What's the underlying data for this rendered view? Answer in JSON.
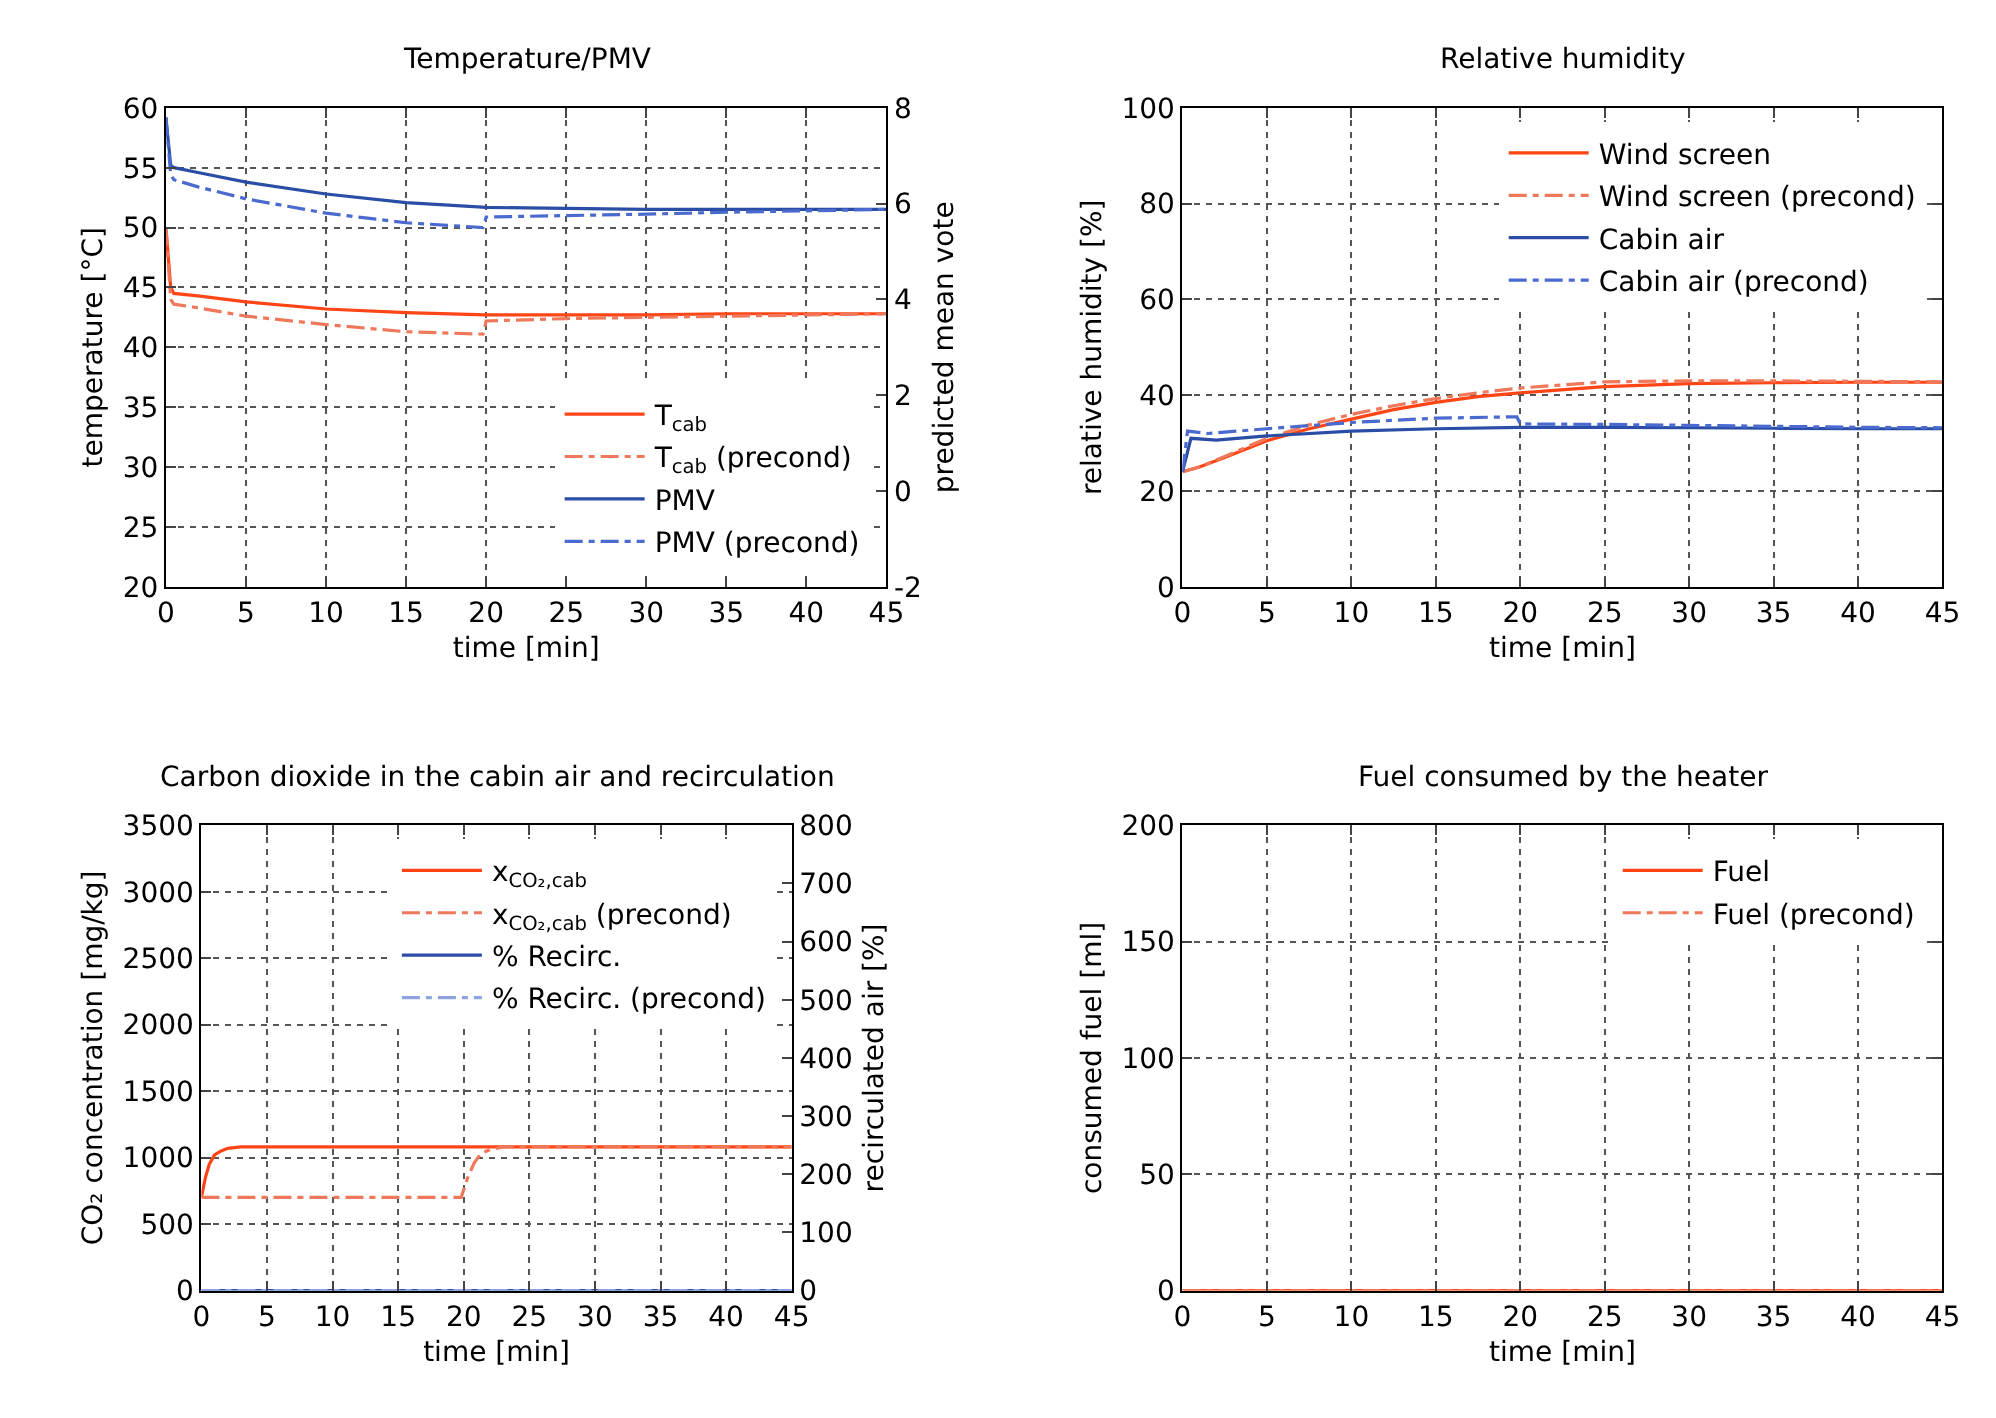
{
  "chart_data": [
    {
      "type": "line",
      "title": "Temperature/PMV",
      "xlabel": "time [min]",
      "ylabel": "temperature [°C]",
      "y2label": "predicted mean vote",
      "xlim": [
        0,
        45
      ],
      "xticks": [
        0,
        5,
        10,
        15,
        20,
        25,
        30,
        35,
        40,
        45
      ],
      "ylim": [
        20,
        60
      ],
      "yticks": [
        20,
        25,
        30,
        35,
        40,
        45,
        50,
        55,
        60
      ],
      "y2lim": [
        -2,
        8
      ],
      "y2ticks": [
        -2,
        0,
        2,
        4,
        6,
        8
      ],
      "grid": true,
      "legend": "bottom right",
      "series": [
        {
          "name": "T$_{cab}$",
          "color": "#ff4515",
          "line_style": "solid",
          "x": [
            0,
            0.3,
            0.5,
            2,
            5,
            10,
            15,
            20,
            25,
            30,
            35,
            40,
            45
          ],
          "values": [
            50,
            45,
            44.5,
            44.3,
            43.8,
            43.2,
            42.9,
            42.7,
            42.7,
            42.7,
            42.8,
            42.8,
            42.8
          ]
        },
        {
          "name": "T$_{cab}$ (precond)",
          "color": "#f0785a",
          "line_style": "dashed",
          "x": [
            0,
            0.3,
            0.5,
            2,
            5,
            10,
            15,
            19.8,
            20,
            25,
            30,
            35,
            40,
            45
          ],
          "values": [
            50,
            44,
            43.6,
            43.3,
            42.6,
            41.9,
            41.3,
            41.1,
            42.2,
            42.4,
            42.5,
            42.6,
            42.7,
            42.8
          ]
        },
        {
          "name": "PMV",
          "color": "#2a4ea6",
          "line_style": "solid",
          "axis": "y2",
          "x": [
            0,
            0.3,
            0.5,
            2,
            5,
            10,
            15,
            20,
            25,
            30,
            35,
            40,
            45
          ],
          "values": [
            7.8,
            6.8,
            6.75,
            6.65,
            6.45,
            6.2,
            6.02,
            5.92,
            5.9,
            5.88,
            5.88,
            5.88,
            5.88
          ]
        },
        {
          "name": "PMV (precond)",
          "color": "#4a6ad0",
          "line_style": "dashed",
          "axis": "y2",
          "x": [
            0,
            0.3,
            0.5,
            2,
            5,
            10,
            15,
            19.8,
            20,
            25,
            30,
            35,
            40,
            45
          ],
          "values": [
            7.8,
            6.6,
            6.5,
            6.35,
            6.1,
            5.8,
            5.6,
            5.5,
            5.72,
            5.75,
            5.78,
            5.82,
            5.85,
            5.88
          ]
        }
      ]
    },
    {
      "type": "line",
      "title": "Relative humidity",
      "xlabel": "time [min]",
      "ylabel": "relative humidity [%]",
      "xlim": [
        0,
        45
      ],
      "xticks": [
        0,
        5,
        10,
        15,
        20,
        25,
        30,
        35,
        40,
        45
      ],
      "ylim": [
        0,
        100
      ],
      "yticks": [
        0,
        20,
        40,
        60,
        80,
        100
      ],
      "grid": true,
      "legend": "top right",
      "series": [
        {
          "name": "Wind screen",
          "color": "#ff4515",
          "line_style": "solid",
          "x": [
            0,
            1,
            2.5,
            5,
            7.5,
            10,
            12.5,
            15,
            17.5,
            20,
            25,
            30,
            35,
            40,
            45
          ],
          "values": [
            24,
            25,
            27,
            30.5,
            33,
            35,
            37,
            38.5,
            39.7,
            40.5,
            41.8,
            42.4,
            42.6,
            42.7,
            42.7
          ]
        },
        {
          "name": "Wind screen (precond)",
          "color": "#f0785a",
          "line_style": "dashed",
          "x": [
            0,
            1,
            2.5,
            5,
            7.5,
            10,
            12.5,
            15,
            17.5,
            20,
            25,
            30,
            35,
            40,
            45
          ],
          "values": [
            24,
            25,
            27.2,
            31,
            33.8,
            36,
            37.8,
            39.3,
            40.5,
            41.5,
            42.8,
            43,
            43,
            42.9,
            42.8
          ]
        },
        {
          "name": "Cabin air",
          "color": "#2a4ea6",
          "line_style": "solid",
          "x": [
            0,
            0.5,
            2,
            5,
            10,
            15,
            20,
            25,
            30,
            35,
            40,
            45
          ],
          "values": [
            24,
            31,
            30.6,
            31.5,
            32.5,
            33,
            33.3,
            33.3,
            33.2,
            33.1,
            33,
            33
          ]
        },
        {
          "name": "Cabin air (precond)",
          "color": "#4a6ad0",
          "line_style": "dashed",
          "x": [
            0,
            0.3,
            1.5,
            5,
            10,
            15,
            19.8,
            20,
            25,
            30,
            35,
            40,
            45
          ],
          "values": [
            24,
            32.5,
            32,
            33,
            34.3,
            35.2,
            35.5,
            34,
            33.9,
            33.7,
            33.5,
            33.3,
            33.2
          ]
        }
      ]
    },
    {
      "type": "line",
      "title": "Carbon dioxide in the cabin air and recirculation",
      "xlabel": "time [min]",
      "ylabel": "CO₂ concentration [mg/kg]",
      "y2label": "recirculated air [%]",
      "xlim": [
        0,
        45
      ],
      "xticks": [
        0,
        5,
        10,
        15,
        20,
        25,
        30,
        35,
        40,
        45
      ],
      "ylim": [
        0,
        3500
      ],
      "yticks": [
        0,
        500,
        1000,
        1500,
        2000,
        2500,
        3000,
        3500
      ],
      "y2lim": [
        0,
        800
      ],
      "y2ticks": [
        0,
        100,
        200,
        300,
        400,
        500,
        600,
        700,
        800
      ],
      "grid": true,
      "legend": "top right",
      "series": [
        {
          "name": "x$_{CO₂,cab}$",
          "color": "#ff4515",
          "line_style": "solid",
          "x": [
            0,
            0.3,
            0.6,
            1,
            1.5,
            2,
            3,
            10,
            20,
            30,
            45
          ],
          "values": [
            700,
            850,
            950,
            1020,
            1050,
            1070,
            1080,
            1080,
            1080,
            1080,
            1080
          ]
        },
        {
          "name": "x$_{CO₂,cab}$ (precond)",
          "color": "#f0785a",
          "line_style": "dashed",
          "x": [
            0,
            10,
            19.8,
            20.3,
            20.8,
            21.3,
            22,
            23,
            30,
            45
          ],
          "values": [
            700,
            700,
            700,
            850,
            960,
            1030,
            1060,
            1080,
            1080,
            1080
          ]
        },
        {
          "name": "% Recirc.",
          "color": "#2a4ea6",
          "line_style": "solid",
          "axis": "y2",
          "x": [
            0,
            45
          ],
          "values": [
            0,
            0
          ]
        },
        {
          "name": "% Recirc. (precond)",
          "color": "#8ea4e0",
          "line_style": "dashed",
          "axis": "y2",
          "x": [
            0,
            45
          ],
          "values": [
            0,
            0
          ]
        }
      ]
    },
    {
      "type": "line",
      "title": "Fuel consumed by the heater",
      "xlabel": "time [min]",
      "ylabel": "consumed fuel [ml]",
      "xlim": [
        0,
        45
      ],
      "xticks": [
        0,
        5,
        10,
        15,
        20,
        25,
        30,
        35,
        40,
        45
      ],
      "ylim": [
        0,
        200
      ],
      "yticks": [
        0,
        50,
        100,
        150,
        200
      ],
      "grid": true,
      "legend": "top right",
      "series": [
        {
          "name": "Fuel",
          "color": "#ff4515",
          "line_style": "solid",
          "x": [
            0,
            45
          ],
          "values": [
            0,
            0
          ]
        },
        {
          "name": "Fuel (precond)",
          "color": "#f0785a",
          "line_style": "dashed",
          "x": [
            0,
            45
          ],
          "values": [
            0,
            0
          ]
        }
      ]
    }
  ]
}
